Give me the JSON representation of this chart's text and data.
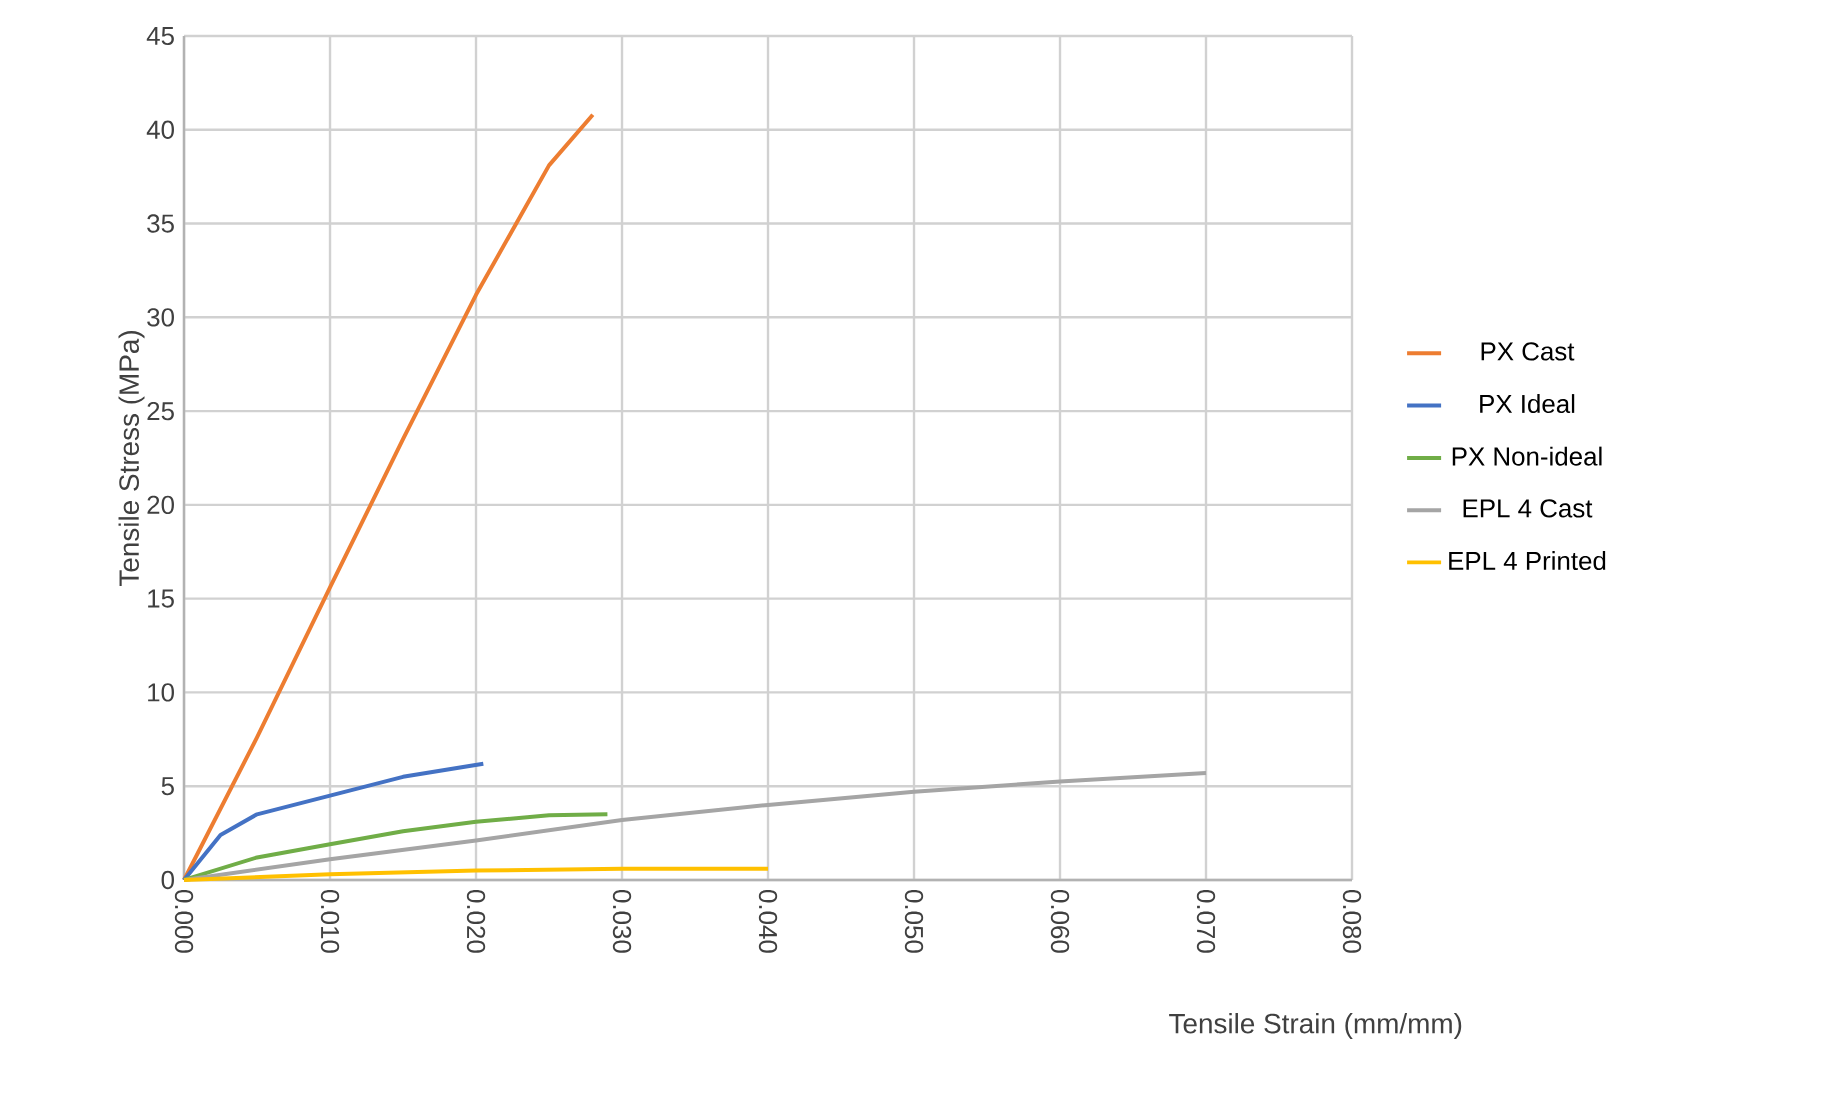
{
  "chart_data": {
    "type": "line",
    "xlabel": "Tensile Strain (mm/mm)",
    "ylabel": "Tensile Stress (MPa)",
    "xlim": [
      0,
      0.08
    ],
    "ylim": [
      0,
      45
    ],
    "xticks": [
      {
        "value": 0,
        "label": "0.000"
      },
      {
        "value": 0.01,
        "label": "0.010"
      },
      {
        "value": 0.02,
        "label": "0.020"
      },
      {
        "value": 0.03,
        "label": "0.030"
      },
      {
        "value": 0.04,
        "label": "0.040"
      },
      {
        "value": 0.05,
        "label": "0.050"
      },
      {
        "value": 0.06,
        "label": "0.060"
      },
      {
        "value": 0.07,
        "label": "0.070"
      },
      {
        "value": 0.08,
        "label": "0.080"
      }
    ],
    "yticks": [
      0,
      5,
      10,
      15,
      20,
      25,
      30,
      35,
      40,
      45
    ],
    "grid": true,
    "legend": "right",
    "marker": "none",
    "line_style": "solid",
    "series": [
      {
        "name": "PX Cast",
        "color": "#ed7d31",
        "x": [
          0,
          0.005,
          0.01,
          0.015,
          0.02,
          0.025,
          0.028
        ],
        "values": [
          0,
          7.6,
          15.6,
          23.5,
          31.2,
          38.1,
          40.8
        ]
      },
      {
        "name": "PX Ideal",
        "color": "#4472c4",
        "x": [
          0,
          0.0025,
          0.005,
          0.01,
          0.015,
          0.0205
        ],
        "values": [
          0,
          2.4,
          3.5,
          4.5,
          5.5,
          6.2
        ]
      },
      {
        "name": "PX Non-ideal",
        "color": "#70ad47",
        "x": [
          0,
          0.005,
          0.01,
          0.015,
          0.02,
          0.025,
          0.029
        ],
        "values": [
          0,
          1.2,
          1.9,
          2.6,
          3.1,
          3.45,
          3.5
        ]
      },
      {
        "name": "EPL 4 Cast",
        "color": "#a5a5a5",
        "x": [
          0,
          0.01,
          0.02,
          0.03,
          0.04,
          0.05,
          0.06,
          0.07
        ],
        "values": [
          0,
          1.1,
          2.1,
          3.2,
          4.0,
          4.7,
          5.25,
          5.7
        ]
      },
      {
        "name": "EPL 4 Printed",
        "color": "#ffc000",
        "x": [
          0,
          0.01,
          0.02,
          0.03,
          0.04
        ],
        "values": [
          0,
          0.3,
          0.5,
          0.6,
          0.6
        ]
      }
    ]
  }
}
